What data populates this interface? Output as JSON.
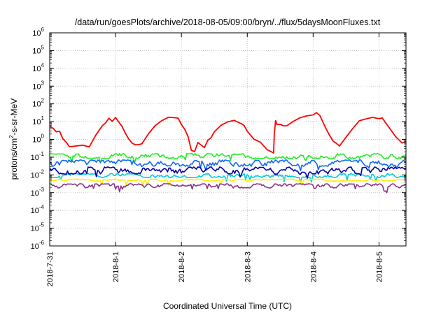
{
  "chart_data": {
    "type": "line",
    "title": "/data/run/goesPlots/archive/2018-08-05/09:00/bryn/../flux/5daysMoonFluxes.txt",
    "xlabel": "Coordinated Universal Time (UTC)",
    "ylabel": {
      "pre": "protons/cm",
      "sup": "2",
      "post": "-s-sr-MeV"
    },
    "yscale": "log",
    "ylim_exp": [
      -6,
      6
    ],
    "ytick_base": "10",
    "ytick_exponents": [
      "6",
      "5",
      "4",
      "3",
      "2",
      "1",
      "0",
      "-1",
      "-2",
      "-3",
      "-4",
      "-5",
      "-6"
    ],
    "x_tick_labels": [
      "2018-7-31",
      "2018-8-1",
      "2018-8-2",
      "2018-8-3",
      "2018-8-4",
      "2018-8-5"
    ],
    "x_ticks_day": [
      0,
      1,
      2,
      3,
      4,
      5
    ],
    "xlim_day": [
      0,
      5.41
    ],
    "grid": true,
    "series": [
      {
        "color": "#ff0000",
        "kind": "red",
        "x": [
          0.0,
          0.05,
          0.1,
          0.15,
          0.2,
          0.25,
          0.3,
          0.4,
          0.5,
          0.6,
          0.7,
          0.8,
          0.85,
          0.9,
          0.95,
          1.0,
          1.05,
          1.1,
          1.15,
          1.2,
          1.25,
          1.3,
          1.35,
          1.4,
          1.5,
          1.6,
          1.7,
          1.8,
          1.9,
          1.95,
          2.0,
          2.05,
          2.1,
          2.15,
          2.2,
          2.25,
          2.3,
          2.35,
          2.4,
          2.45,
          2.5,
          2.6,
          2.7,
          2.8,
          2.9,
          2.95,
          3.0,
          3.1,
          3.2,
          3.3,
          3.4,
          3.41,
          3.43,
          3.45,
          3.5,
          3.55,
          3.6,
          3.7,
          3.8,
          3.9,
          4.0,
          4.05,
          4.1,
          4.2,
          4.25,
          4.3,
          4.35,
          4.4,
          4.5,
          4.6,
          4.7,
          4.8,
          4.9,
          5.0,
          5.05,
          5.1,
          5.2,
          5.25,
          5.3,
          5.35,
          5.41
        ],
        "y": [
          6,
          4,
          3,
          2.5,
          1.2,
          0.6,
          0.35,
          0.5,
          0.5,
          0.45,
          1.5,
          6,
          10,
          14,
          12,
          15,
          11,
          6,
          2.5,
          1,
          0.6,
          0.45,
          0.45,
          0.6,
          1.8,
          5,
          10,
          15,
          18,
          17,
          8,
          3.5,
          1.3,
          0.25,
          0.2,
          0.6,
          0.5,
          0.4,
          0.8,
          1.5,
          3,
          7,
          9,
          11,
          8,
          6,
          3,
          1.2,
          0.6,
          0.3,
          0.2,
          2,
          10,
          6,
          7,
          5,
          6,
          10,
          15,
          22,
          25,
          28,
          20,
          4,
          1.5,
          0.8,
          0.7,
          0.5,
          1.5,
          4,
          10,
          15,
          18,
          17,
          14,
          8,
          3,
          1.5,
          1,
          0.6,
          0.7
        ]
      },
      {
        "color": "#22ee22",
        "kind": "band",
        "y_low": 0.08,
        "y_high": 0.16,
        "start": 0.12
      },
      {
        "color": "#1166ff",
        "kind": "band",
        "y_low": 0.03,
        "y_high": 0.07,
        "start": 0.06
      },
      {
        "color": "#00ccdd",
        "kind": "band",
        "y_low": 0.007,
        "y_high": 0.012,
        "start": 0.009
      },
      {
        "color": "#0000aa",
        "kind": "band",
        "y_low": 0.011,
        "y_high": 0.028,
        "start": 0.018
      },
      {
        "color": "#ffee00",
        "kind": "band",
        "y_low": 0.0045,
        "y_high": 0.0058,
        "start": 0.005
      },
      {
        "color": "#883388",
        "kind": "band",
        "y_low": 0.0018,
        "y_high": 0.0032,
        "start": 0.0025
      }
    ]
  }
}
